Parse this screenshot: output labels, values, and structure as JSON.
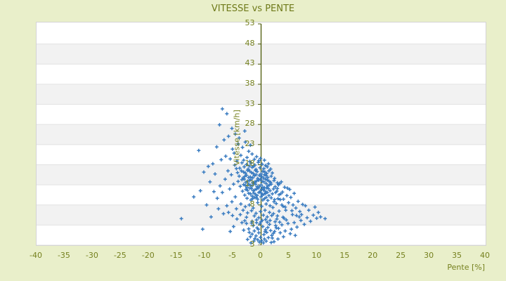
{
  "page": {
    "background_color": "#e9efca",
    "text_color": "#75801e"
  },
  "chart_data": {
    "type": "scatter",
    "title": "VITESSE vs PENTE",
    "xlabel": "Pente [%]",
    "ylabel": "Vitesse [km/h]",
    "xlim": [
      -40,
      40
    ],
    "ylim": [
      3,
      53
    ],
    "x_tick_values": [
      -40,
      -35,
      -30,
      -25,
      -20,
      -15,
      -10,
      -5,
      0,
      5,
      10,
      15,
      20,
      25,
      30,
      35,
      40
    ],
    "x_tick_labels": [
      "-40",
      "-35",
      "-30",
      "-25",
      "-20",
      "-15",
      "-10",
      "-5",
      "0",
      "5",
      "10",
      "15",
      "20",
      "25",
      "30",
      "35",
      "40"
    ],
    "y_tick_labels": [
      "53",
      "48",
      "43",
      "38",
      "33",
      "28",
      "23",
      "18",
      "13",
      "8",
      "3",
      "3"
    ],
    "grid": "horizontal-alternating-bands",
    "band_colors": [
      "#ffffff",
      "#f2f2f2"
    ],
    "band_edge_color": "#e2e2e2",
    "axis_line_color": "#4c5a08",
    "axis_position": "x-zero",
    "legend": "none",
    "marker": {
      "shape": "plus",
      "color": "#3a7cc1",
      "size": 5
    },
    "points": [
      [
        -6.9,
        33.8
      ],
      [
        -6.1,
        32.7
      ],
      [
        -7.4,
        30.2
      ],
      [
        -5.2,
        29.4
      ],
      [
        -4.6,
        28.1
      ],
      [
        -5.8,
        27.6
      ],
      [
        -3.9,
        27.2
      ],
      [
        -6.6,
        26.8
      ],
      [
        -2.8,
        26.3
      ],
      [
        -4.1,
        25.9
      ],
      [
        -7.9,
        25.2
      ],
      [
        -3.3,
        25.1
      ],
      [
        -5.1,
        24.7
      ],
      [
        -11.1,
        24.4
      ],
      [
        -2.2,
        24.2
      ],
      [
        -4.8,
        23.8
      ],
      [
        -1.6,
        23.6
      ],
      [
        -3.6,
        23.3
      ],
      [
        -6.3,
        23.1
      ],
      [
        -0.8,
        23.0
      ],
      [
        -2.5,
        22.8
      ],
      [
        -5.5,
        22.5
      ],
      [
        -1.2,
        22.4
      ],
      [
        -3.1,
        22.2
      ],
      [
        -4.3,
        22.0
      ],
      [
        -0.4,
        22.1
      ],
      [
        -7.1,
        22.3
      ],
      [
        -2.0,
        21.9
      ],
      [
        -8.6,
        21.4
      ],
      [
        -9.4,
        20.8
      ],
      [
        -0.1,
        22.6
      ],
      [
        0.6,
        22.2
      ],
      [
        -1.9,
        25.6
      ],
      [
        -2.9,
        28.8
      ],
      [
        -10.2,
        19.5
      ],
      [
        -3.4,
        21.6
      ],
      [
        -2.6,
        21.2
      ],
      [
        -1.8,
        21.5
      ],
      [
        -1.1,
        21.1
      ],
      [
        -0.5,
        21.7
      ],
      [
        0.2,
        21.3
      ],
      [
        0.8,
        21.0
      ],
      [
        -2.1,
        20.9
      ],
      [
        1.3,
        21.4
      ],
      [
        -3.8,
        20.4
      ],
      [
        -3.0,
        20.7
      ],
      [
        -2.3,
        20.2
      ],
      [
        -1.6,
        20.6
      ],
      [
        -0.9,
        20.1
      ],
      [
        -0.2,
        20.5
      ],
      [
        0.5,
        20.3
      ],
      [
        1.1,
        20.7
      ],
      [
        1.7,
        20.2
      ],
      [
        -1.3,
        20.8
      ],
      [
        -4.4,
        20.3
      ],
      [
        -3.5,
        19.8
      ],
      [
        -2.8,
        19.3
      ],
      [
        -2.0,
        19.7
      ],
      [
        -1.4,
        19.2
      ],
      [
        -0.7,
        19.6
      ],
      [
        0.0,
        19.1
      ],
      [
        0.7,
        19.5
      ],
      [
        1.4,
        19.8
      ],
      [
        2.0,
        19.3
      ],
      [
        -1.0,
        19.9
      ],
      [
        -3.1,
        19.5
      ],
      [
        0.3,
        19.7
      ],
      [
        -1.7,
        19.4
      ],
      [
        -2.4,
        19.9
      ],
      [
        1.0,
        19.2
      ],
      [
        -3.9,
        18.6
      ],
      [
        -3.2,
        18.2
      ],
      [
        -2.6,
        18.8
      ],
      [
        -1.9,
        18.4
      ],
      [
        -1.2,
        18.7
      ],
      [
        -0.6,
        18.1
      ],
      [
        0.1,
        18.5
      ],
      [
        0.6,
        18.9
      ],
      [
        1.2,
        18.3
      ],
      [
        1.8,
        18.6
      ],
      [
        2.4,
        18.1
      ],
      [
        -0.3,
        18.8
      ],
      [
        -1.5,
        18.2
      ],
      [
        -2.9,
        18.5
      ],
      [
        0.9,
        18.7
      ],
      [
        -0.9,
        18.9
      ],
      [
        -2.2,
        18.3
      ],
      [
        0.4,
        18.2
      ],
      [
        -4.1,
        17.4
      ],
      [
        -3.4,
        17.8
      ],
      [
        -2.7,
        17.2
      ],
      [
        -2.1,
        17.6
      ],
      [
        -1.5,
        17.1
      ],
      [
        -0.8,
        17.5
      ],
      [
        -0.1,
        17.9
      ],
      [
        0.5,
        17.3
      ],
      [
        1.1,
        17.7
      ],
      [
        1.7,
        17.2
      ],
      [
        2.3,
        17.6
      ],
      [
        2.9,
        17.1
      ],
      [
        -1.8,
        17.8
      ],
      [
        -1.1,
        17.3
      ],
      [
        -0.4,
        17.7
      ],
      [
        0.8,
        17.9
      ],
      [
        -2.4,
        17.5
      ],
      [
        -3.0,
        17.9
      ],
      [
        0.2,
        17.4
      ],
      [
        1.4,
        17.5
      ],
      [
        -3.7,
        16.3
      ],
      [
        -3.1,
        16.7
      ],
      [
        -2.5,
        16.1
      ],
      [
        -1.9,
        16.5
      ],
      [
        -1.3,
        16.9
      ],
      [
        -0.7,
        16.2
      ],
      [
        0.0,
        16.6
      ],
      [
        0.6,
        16.0
      ],
      [
        1.2,
        16.4
      ],
      [
        1.8,
        16.8
      ],
      [
        2.5,
        16.2
      ],
      [
        3.1,
        16.6
      ],
      [
        -1.0,
        16.8
      ],
      [
        -0.3,
        16.3
      ],
      [
        0.9,
        16.9
      ],
      [
        -1.6,
        16.4
      ],
      [
        -2.2,
        16.8
      ],
      [
        0.3,
        16.1
      ],
      [
        1.5,
        16.6
      ],
      [
        -2.8,
        16.5
      ],
      [
        -3.3,
        15.2
      ],
      [
        -2.7,
        15.6
      ],
      [
        -2.0,
        15.9
      ],
      [
        -1.4,
        15.3
      ],
      [
        -0.8,
        15.7
      ],
      [
        -0.2,
        15.1
      ],
      [
        0.4,
        15.5
      ],
      [
        1.0,
        15.9
      ],
      [
        1.6,
        15.3
      ],
      [
        2.2,
        15.7
      ],
      [
        2.8,
        15.2
      ],
      [
        -1.1,
        15.5
      ],
      [
        -0.5,
        15.9
      ],
      [
        0.7,
        15.2
      ],
      [
        -1.7,
        15.8
      ],
      [
        0.1,
        15.6
      ],
      [
        1.3,
        15.8
      ],
      [
        -2.4,
        15.4
      ],
      [
        -2.9,
        14.3
      ],
      [
        -2.2,
        14.7
      ],
      [
        -1.6,
        14.1
      ],
      [
        -1.0,
        14.5
      ],
      [
        -0.4,
        14.9
      ],
      [
        0.2,
        14.3
      ],
      [
        0.8,
        14.7
      ],
      [
        1.4,
        14.2
      ],
      [
        2.0,
        14.6
      ],
      [
        2.6,
        14.9
      ],
      [
        -1.3,
        14.8
      ],
      [
        -0.7,
        14.2
      ],
      [
        0.5,
        14.5
      ],
      [
        1.1,
        14.9
      ],
      [
        -1.9,
        14.6
      ],
      [
        0.0,
        14.8
      ],
      [
        3.2,
        14.4
      ],
      [
        -2.5,
        13.6
      ],
      [
        -1.8,
        13.2
      ],
      [
        -1.2,
        13.8
      ],
      [
        -0.6,
        13.4
      ],
      [
        0.0,
        13.9
      ],
      [
        0.6,
        13.5
      ],
      [
        1.2,
        13.1
      ],
      [
        1.8,
        13.7
      ],
      [
        2.4,
        13.3
      ],
      [
        -0.9,
        13.7
      ],
      [
        0.3,
        13.2
      ],
      [
        -1.5,
        13.5
      ],
      [
        0.9,
        13.8
      ],
      [
        3.0,
        13.5
      ],
      [
        -5.9,
        19.8
      ],
      [
        -5.3,
        18.9
      ],
      [
        -6.4,
        17.9
      ],
      [
        -4.9,
        16.8
      ],
      [
        -5.6,
        15.7
      ],
      [
        -6.9,
        14.9
      ],
      [
        -4.6,
        13.9
      ],
      [
        -5.2,
        12.8
      ],
      [
        -6.1,
        11.9
      ],
      [
        -4.4,
        11.2
      ],
      [
        -7.3,
        16.4
      ],
      [
        -7.8,
        13.6
      ],
      [
        -8.4,
        15.1
      ],
      [
        -5.8,
        10.4
      ],
      [
        -4.2,
        19.4
      ],
      [
        -4.7,
        21.1
      ],
      [
        3.6,
        17.3
      ],
      [
        4.2,
        16.1
      ],
      [
        3.8,
        15.0
      ],
      [
        4.6,
        14.2
      ],
      [
        3.4,
        13.3
      ],
      [
        4.9,
        12.6
      ],
      [
        3.9,
        11.8
      ],
      [
        4.4,
        10.9
      ],
      [
        5.3,
        13.8
      ],
      [
        5.7,
        12.1
      ],
      [
        5.1,
        15.6
      ],
      [
        6.2,
        11.4
      ],
      [
        5.9,
        14.7
      ],
      [
        6.6,
        12.9
      ],
      [
        2.7,
        12.4
      ],
      [
        3.2,
        10.7
      ],
      [
        2.1,
        11.5
      ],
      [
        -3.6,
        12.3
      ],
      [
        -2.8,
        11.7
      ],
      [
        -2.1,
        12.1
      ],
      [
        -1.4,
        11.4
      ],
      [
        -0.6,
        12.6
      ],
      [
        0.1,
        11.8
      ],
      [
        0.9,
        12.3
      ],
      [
        1.6,
        11.9
      ],
      [
        2.3,
        12.8
      ],
      [
        -3.2,
        10.9
      ],
      [
        -2.4,
        10.3
      ],
      [
        -1.7,
        10.8
      ],
      [
        -0.9,
        10.2
      ],
      [
        -0.1,
        10.6
      ],
      [
        0.7,
        10.9
      ],
      [
        1.5,
        10.4
      ],
      [
        2.2,
        10.1
      ],
      [
        -1.2,
        9.6
      ],
      [
        -0.4,
        9.2
      ],
      [
        0.4,
        9.8
      ],
      [
        1.1,
        9.4
      ],
      [
        1.9,
        9.7
      ],
      [
        -2.6,
        9.3
      ],
      [
        2.9,
        9.6
      ],
      [
        -0.8,
        8.7
      ],
      [
        0.0,
        8.3
      ],
      [
        0.8,
        8.8
      ],
      [
        -1.6,
        8.4
      ],
      [
        1.6,
        8.6
      ],
      [
        -5.1,
        9.7
      ],
      [
        -4.3,
        8.9
      ],
      [
        -3.7,
        9.9
      ],
      [
        6.9,
        10.6
      ],
      [
        7.4,
        12.2
      ],
      [
        -6.7,
        10.1
      ],
      [
        -7.6,
        11.2
      ],
      [
        4.1,
        9.1
      ],
      [
        3.3,
        8.2
      ],
      [
        3.5,
        14.6
      ],
      [
        4.0,
        13.4
      ],
      [
        4.7,
        15.9
      ],
      [
        3.7,
        12.1
      ],
      [
        5.5,
        10.8
      ],
      [
        6.3,
        9.7
      ],
      [
        7.2,
        9.9
      ],
      [
        2.9,
        15.8
      ],
      [
        3.3,
        16.9
      ],
      [
        4.3,
        11.6
      ],
      [
        2.6,
        7.4
      ],
      [
        3.1,
        6.8
      ],
      [
        3.7,
        7.6
      ],
      [
        4.3,
        6.2
      ],
      [
        4.8,
        7.9
      ],
      [
        5.4,
        6.6
      ],
      [
        5.9,
        8.1
      ],
      [
        6.4,
        7.1
      ],
      [
        7.1,
        8.6
      ],
      [
        7.7,
        7.7
      ],
      [
        8.2,
        9.2
      ],
      [
        8.8,
        8.4
      ],
      [
        9.3,
        9.8
      ],
      [
        9.9,
        9.1
      ],
      [
        10.6,
        9.4
      ],
      [
        8.5,
        10.9
      ],
      [
        9.6,
        11.6
      ],
      [
        10.2,
        10.4
      ],
      [
        7.9,
        11.9
      ],
      [
        6.8,
        9.4
      ],
      [
        5.6,
        9.9
      ],
      [
        4.5,
        8.7
      ],
      [
        3.9,
        9.3
      ],
      [
        2.8,
        8.9
      ],
      [
        5.2,
        5.6
      ],
      [
        4.0,
        4.9
      ],
      [
        3.4,
        5.8
      ],
      [
        6.1,
        5.2
      ],
      [
        2.4,
        6.1
      ],
      [
        11.4,
        9.0
      ],
      [
        -0.2,
        7.8
      ],
      [
        0.3,
        7.2
      ],
      [
        -0.7,
        6.9
      ],
      [
        0.8,
        6.5
      ],
      [
        -1.2,
        6.2
      ],
      [
        1.2,
        7.0
      ],
      [
        -0.4,
        5.8
      ],
      [
        0.5,
        5.4
      ],
      [
        -0.9,
        5.1
      ],
      [
        1.0,
        5.9
      ],
      [
        -1.6,
        5.5
      ],
      [
        1.7,
        6.3
      ],
      [
        -0.1,
        4.8
      ],
      [
        0.6,
        4.4
      ],
      [
        -0.6,
        4.2
      ],
      [
        1.3,
        4.7
      ],
      [
        -1.1,
        4.5
      ],
      [
        0.1,
        4.0
      ],
      [
        -0.3,
        3.7
      ],
      [
        0.9,
        3.9
      ],
      [
        0.4,
        3.5
      ],
      [
        -2.2,
        6.7
      ],
      [
        2.2,
        5.7
      ],
      [
        -1.9,
        4.9
      ],
      [
        1.9,
        5.2
      ],
      [
        -1.4,
        7.4
      ],
      [
        1.5,
        7.7
      ],
      [
        -2.6,
        7.9
      ],
      [
        2.5,
        8.3
      ],
      [
        -0.8,
        8.1
      ],
      [
        0.2,
        8.6
      ],
      [
        1.1,
        8.2
      ],
      [
        -1.7,
        8.0
      ],
      [
        -2.1,
        5.9
      ],
      [
        2.0,
        4.6
      ],
      [
        -0.5,
        6.6
      ],
      [
        0.7,
        6.1
      ],
      [
        -1.3,
        3.9
      ],
      [
        2.7,
        6.9
      ],
      [
        -2.9,
        8.5
      ],
      [
        -3.4,
        8.1
      ],
      [
        -4.9,
        7.2
      ],
      [
        -3.1,
        6.4
      ],
      [
        -2.4,
        4.3
      ],
      [
        -5.5,
        6.1
      ],
      [
        2.3,
        3.8
      ],
      [
        3.0,
        4.4
      ],
      [
        1.8,
        3.6
      ],
      [
        -1.8,
        3.5
      ],
      [
        -14.2,
        9.0
      ],
      [
        -10.4,
        6.6
      ],
      [
        -9.7,
        12.1
      ],
      [
        -12.0,
        13.9
      ],
      [
        -8.9,
        9.4
      ],
      [
        -9.1,
        17.3
      ],
      [
        -8.2,
        19.1
      ],
      [
        -10.8,
        15.3
      ]
    ]
  }
}
